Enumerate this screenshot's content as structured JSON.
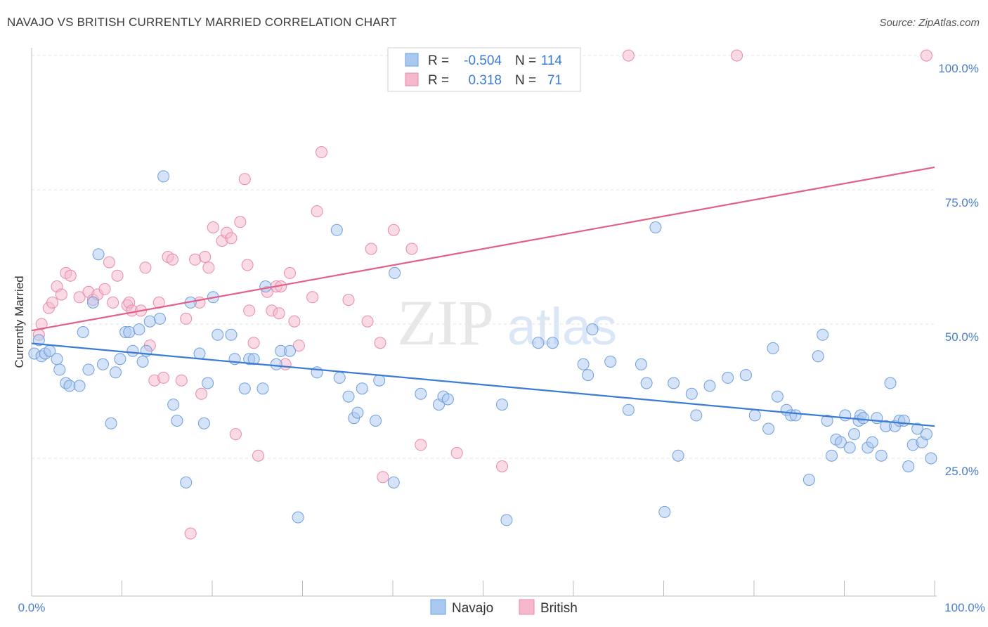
{
  "header": {
    "title": "NAVAJO VS BRITISH CURRENTLY MARRIED CORRELATION CHART",
    "source": "Source: ZipAtlas.com"
  },
  "watermark": {
    "zip": "ZIP",
    "atlas": "atlas"
  },
  "legend_box": {
    "rows": [
      {
        "r_label": "R =",
        "r_value": "-0.504",
        "n_label": "N =",
        "n_value": "114"
      },
      {
        "r_label": "R =",
        "r_value": "0.318",
        "n_label": "N =",
        "n_value": "71"
      }
    ]
  },
  "bottom_legend": {
    "navajo": "Navajo",
    "british": "British"
  },
  "colors": {
    "navajo_fill": "#a9c8ef",
    "navajo_stroke": "#6e9fdc",
    "navajo_line": "#3a7bd5",
    "british_fill": "#f5b8cb",
    "british_stroke": "#e88aaa",
    "british_line": "#e0608a",
    "tick_label": "#4a7fcf",
    "grid": "#e3e3e3"
  },
  "chart_data": {
    "type": "scatter",
    "title": "NAVAJO VS BRITISH CURRENTLY MARRIED CORRELATION CHART",
    "xlabel": "",
    "ylabel": "Currently Married",
    "xlim": [
      0,
      100
    ],
    "ylim": [
      0,
      100
    ],
    "x_tick_labels": [
      "0.0%",
      "100.0%"
    ],
    "y_ticks": [
      25,
      50,
      75,
      100
    ],
    "y_tick_labels": [
      "25.0%",
      "50.0%",
      "75.0%",
      "100.0%"
    ],
    "series": [
      {
        "name": "Navajo",
        "R": -0.504,
        "N": 114,
        "trend": {
          "x": [
            0,
            100
          ],
          "y": [
            46.4,
            31.0
          ]
        },
        "points": [
          [
            0.3,
            44.5
          ],
          [
            0.8,
            47
          ],
          [
            1.1,
            44
          ],
          [
            1.5,
            44.5
          ],
          [
            2.0,
            45
          ],
          [
            2.8,
            43.5
          ],
          [
            3.1,
            41.5
          ],
          [
            3.8,
            39
          ],
          [
            4.2,
            38.5
          ],
          [
            5.3,
            38.5
          ],
          [
            5.7,
            48.5
          ],
          [
            6.3,
            41.5
          ],
          [
            6.8,
            54
          ],
          [
            7.4,
            63
          ],
          [
            7.9,
            42.5
          ],
          [
            8.8,
            31.5
          ],
          [
            9.3,
            41
          ],
          [
            9.8,
            43.5
          ],
          [
            10.4,
            48.5
          ],
          [
            10.8,
            48.5
          ],
          [
            11.2,
            45
          ],
          [
            11.9,
            49
          ],
          [
            12.3,
            43
          ],
          [
            12.7,
            45
          ],
          [
            13.1,
            50.5
          ],
          [
            14.2,
            51
          ],
          [
            14.6,
            77.5
          ],
          [
            15.7,
            35
          ],
          [
            16.1,
            32
          ],
          [
            17.1,
            20.5
          ],
          [
            17.6,
            54
          ],
          [
            18.6,
            44.5
          ],
          [
            19.1,
            31.5
          ],
          [
            19.5,
            39
          ],
          [
            20.1,
            55
          ],
          [
            20.6,
            48
          ],
          [
            22.1,
            48
          ],
          [
            22.5,
            43.5
          ],
          [
            23.6,
            38
          ],
          [
            24.1,
            43.5
          ],
          [
            24.6,
            43.5
          ],
          [
            25.6,
            38
          ],
          [
            25.9,
            57
          ],
          [
            27.1,
            42.5
          ],
          [
            27.6,
            45
          ],
          [
            28.6,
            45
          ],
          [
            29.5,
            14
          ],
          [
            31.6,
            41
          ],
          [
            33.8,
            67.5
          ],
          [
            34.1,
            40
          ],
          [
            35.1,
            36.5
          ],
          [
            35.7,
            32.5
          ],
          [
            36.1,
            33.5
          ],
          [
            36.6,
            38
          ],
          [
            38.1,
            32
          ],
          [
            38.5,
            39.5
          ],
          [
            40.1,
            20.5
          ],
          [
            40.2,
            59.5
          ],
          [
            43.1,
            37
          ],
          [
            45.1,
            35
          ],
          [
            45.6,
            36.5
          ],
          [
            46.1,
            36
          ],
          [
            52.1,
            35
          ],
          [
            52.6,
            13.5
          ],
          [
            56.1,
            46.5
          ],
          [
            57.7,
            46.5
          ],
          [
            61.1,
            42.5
          ],
          [
            61.6,
            40.5
          ],
          [
            62.1,
            49
          ],
          [
            64.1,
            43
          ],
          [
            66.1,
            34
          ],
          [
            67.5,
            42.5
          ],
          [
            68.1,
            39
          ],
          [
            69.1,
            68
          ],
          [
            70.1,
            15
          ],
          [
            71.1,
            39
          ],
          [
            71.6,
            25.5
          ],
          [
            73.1,
            37
          ],
          [
            73.6,
            33
          ],
          [
            75.1,
            38.5
          ],
          [
            77.1,
            40
          ],
          [
            79.1,
            40.5
          ],
          [
            80.1,
            33
          ],
          [
            81.6,
            30.5
          ],
          [
            82.1,
            45.5
          ],
          [
            82.6,
            36.5
          ],
          [
            83.6,
            34
          ],
          [
            84.1,
            33
          ],
          [
            84.6,
            33
          ],
          [
            86.1,
            21
          ],
          [
            87.1,
            44
          ],
          [
            87.6,
            48
          ],
          [
            88.1,
            32
          ],
          [
            88.6,
            25.5
          ],
          [
            89.1,
            28.5
          ],
          [
            89.6,
            28
          ],
          [
            90.1,
            33
          ],
          [
            90.6,
            27
          ],
          [
            91.1,
            29.5
          ],
          [
            91.6,
            32
          ],
          [
            91.8,
            33
          ],
          [
            92.1,
            32.5
          ],
          [
            92.6,
            27
          ],
          [
            93.1,
            28
          ],
          [
            93.6,
            32.5
          ],
          [
            94.1,
            25.5
          ],
          [
            94.6,
            31
          ],
          [
            95.1,
            39
          ],
          [
            95.6,
            31
          ],
          [
            96.1,
            32
          ],
          [
            96.6,
            32
          ],
          [
            97.1,
            23.5
          ],
          [
            97.6,
            27.5
          ],
          [
            98.1,
            30.5
          ],
          [
            98.6,
            28
          ],
          [
            99.1,
            29.5
          ],
          [
            99.6,
            25
          ]
        ]
      },
      {
        "name": "British",
        "R": 0.318,
        "N": 71,
        "trend": {
          "x": [
            0,
            100
          ],
          "y": [
            48.8,
            79.2
          ]
        },
        "points": [
          [
            0.8,
            48
          ],
          [
            1.1,
            50
          ],
          [
            1.9,
            53
          ],
          [
            2.3,
            54
          ],
          [
            2.8,
            57
          ],
          [
            3.3,
            55.5
          ],
          [
            3.8,
            59.5
          ],
          [
            4.3,
            59
          ],
          [
            5.3,
            55
          ],
          [
            6.3,
            56
          ],
          [
            6.8,
            54.5
          ],
          [
            7.3,
            55.5
          ],
          [
            8.1,
            56.5
          ],
          [
            8.6,
            61.5
          ],
          [
            9.0,
            54
          ],
          [
            9.5,
            59
          ],
          [
            10.6,
            53.5
          ],
          [
            10.8,
            54
          ],
          [
            11.1,
            52.5
          ],
          [
            12.1,
            52.5
          ],
          [
            12.6,
            60.5
          ],
          [
            13.1,
            46
          ],
          [
            13.6,
            39.5
          ],
          [
            14.1,
            54
          ],
          [
            14.6,
            40
          ],
          [
            15.1,
            62.5
          ],
          [
            15.6,
            62
          ],
          [
            16.6,
            39.5
          ],
          [
            17.1,
            51
          ],
          [
            17.6,
            11
          ],
          [
            18.1,
            62
          ],
          [
            18.6,
            54
          ],
          [
            18.8,
            37
          ],
          [
            19.2,
            62.5
          ],
          [
            19.6,
            60.5
          ],
          [
            20.1,
            68
          ],
          [
            21.1,
            65.5
          ],
          [
            21.6,
            67
          ],
          [
            22.1,
            66
          ],
          [
            22.6,
            29.5
          ],
          [
            23.1,
            69
          ],
          [
            23.6,
            77
          ],
          [
            24.1,
            52.5
          ],
          [
            24.6,
            46.5
          ],
          [
            25.1,
            25.5
          ],
          [
            26.1,
            56
          ],
          [
            26.6,
            52.5
          ],
          [
            27.1,
            57
          ],
          [
            27.6,
            57
          ],
          [
            28.1,
            42.5
          ],
          [
            28.6,
            59.5
          ],
          [
            29.1,
            50.5
          ],
          [
            29.6,
            46
          ],
          [
            31.1,
            55
          ],
          [
            31.6,
            71
          ],
          [
            32.1,
            82
          ],
          [
            35.1,
            54.5
          ],
          [
            37.6,
            64
          ],
          [
            38.6,
            46.5
          ],
          [
            38.9,
            21.5
          ],
          [
            40.1,
            67.5
          ],
          [
            42.1,
            64
          ],
          [
            43.1,
            27.5
          ],
          [
            47.1,
            26
          ],
          [
            52.1,
            23.5
          ],
          [
            66.1,
            100
          ],
          [
            78.1,
            100
          ],
          [
            99.1,
            100
          ],
          [
            37.2,
            50.5
          ],
          [
            27.4,
            52
          ],
          [
            23.9,
            61
          ]
        ]
      }
    ]
  }
}
